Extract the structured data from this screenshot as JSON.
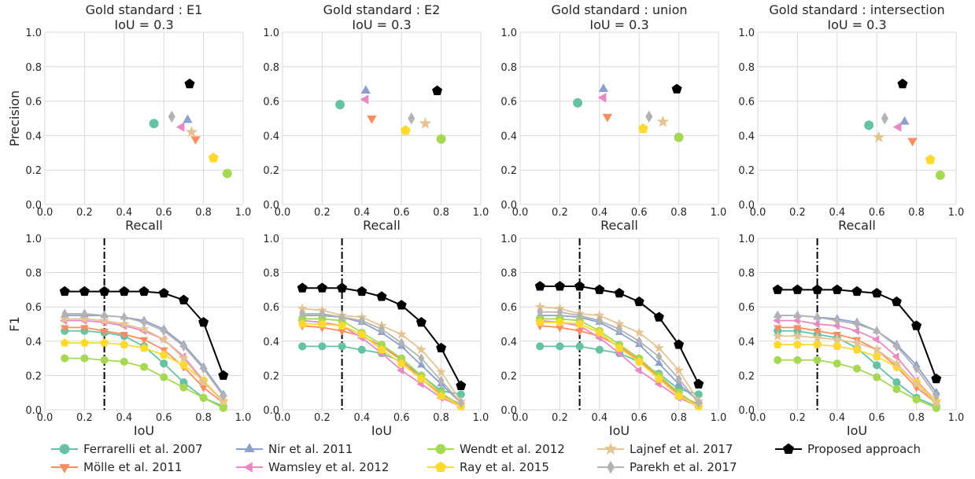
{
  "colors": {
    "Ferrarelli": "#66c2a5",
    "Molle": "#fc8d62",
    "Nir": "#8da0cb",
    "Wamsley": "#e78ac3",
    "Wendt": "#a6d854",
    "Ray": "#ffd92f",
    "Lajnef": "#e5c494",
    "Parekh": "#b3b3b3",
    "Proposed": "#000000"
  },
  "legend": [
    {
      "key": "Ferrarelli",
      "label": "Ferrarelli et al. 2007",
      "marker": "circle"
    },
    {
      "key": "Molle",
      "label": "Mölle et al. 2011",
      "marker": "triangle-down"
    },
    {
      "key": "Nir",
      "label": "Nir et al. 2011",
      "marker": "triangle-up"
    },
    {
      "key": "Wamsley",
      "label": "Wamsley et al. 2012",
      "marker": "triangle-left"
    },
    {
      "key": "Wendt",
      "label": "Wendt et al. 2012",
      "marker": "circle"
    },
    {
      "key": "Ray",
      "label": "Ray et al. 2015",
      "marker": "pentagon"
    },
    {
      "key": "Lajnef",
      "label": "Lajnef et al. 2017",
      "marker": "star"
    },
    {
      "key": "Parekh",
      "label": "Parekh et al. 2017",
      "marker": "diamond"
    },
    {
      "key": "Proposed",
      "label": "Proposed approach",
      "marker": "pentagon"
    }
  ],
  "chart_data": [
    {
      "type": "scatter",
      "title": "Gold standard : E1",
      "subtitle": "IoU = 0.3",
      "xlabel": "Recall",
      "ylabel": "Precision",
      "xlim": [
        0,
        1
      ],
      "ylim": [
        0,
        1
      ],
      "xticks": [
        "0.0",
        "0.2",
        "0.4",
        "0.6",
        "0.8",
        "1.0"
      ],
      "yticks": [
        "0.0",
        "0.2",
        "0.4",
        "0.6",
        "0.8",
        "1.0"
      ],
      "grid": true,
      "points": [
        {
          "key": "Ferrarelli",
          "x": 0.55,
          "y": 0.47
        },
        {
          "key": "Molle",
          "x": 0.76,
          "y": 0.38
        },
        {
          "key": "Nir",
          "x": 0.72,
          "y": 0.49
        },
        {
          "key": "Wamsley",
          "x": 0.69,
          "y": 0.45
        },
        {
          "key": "Wendt",
          "x": 0.92,
          "y": 0.18
        },
        {
          "key": "Ray",
          "x": 0.85,
          "y": 0.27
        },
        {
          "key": "Lajnef",
          "x": 0.74,
          "y": 0.42
        },
        {
          "key": "Parekh",
          "x": 0.64,
          "y": 0.51
        },
        {
          "key": "Proposed",
          "x": 0.73,
          "y": 0.7
        }
      ]
    },
    {
      "type": "scatter",
      "title": "Gold standard : E2",
      "subtitle": "IoU = 0.3",
      "xlabel": "Recall",
      "ylabel": "",
      "xlim": [
        0,
        1
      ],
      "ylim": [
        0,
        1
      ],
      "xticks": [
        "0.0",
        "0.2",
        "0.4",
        "0.6",
        "0.8",
        "1.0"
      ],
      "yticks": [
        "0.0",
        "0.2",
        "0.4",
        "0.6",
        "0.8",
        "1.0"
      ],
      "grid": true,
      "points": [
        {
          "key": "Ferrarelli",
          "x": 0.29,
          "y": 0.58
        },
        {
          "key": "Molle",
          "x": 0.45,
          "y": 0.5
        },
        {
          "key": "Nir",
          "x": 0.42,
          "y": 0.66
        },
        {
          "key": "Wamsley",
          "x": 0.42,
          "y": 0.61
        },
        {
          "key": "Wendt",
          "x": 0.8,
          "y": 0.38
        },
        {
          "key": "Ray",
          "x": 0.62,
          "y": 0.43
        },
        {
          "key": "Lajnef",
          "x": 0.72,
          "y": 0.47
        },
        {
          "key": "Parekh",
          "x": 0.65,
          "y": 0.5
        },
        {
          "key": "Proposed",
          "x": 0.78,
          "y": 0.66
        }
      ]
    },
    {
      "type": "scatter",
      "title": "Gold standard : union",
      "subtitle": "IoU = 0.3",
      "xlabel": "Recall",
      "ylabel": "",
      "xlim": [
        0,
        1
      ],
      "ylim": [
        0,
        1
      ],
      "xticks": [
        "0.0",
        "0.2",
        "0.4",
        "0.6",
        "0.8",
        "1.0"
      ],
      "yticks": [
        "0.0",
        "0.2",
        "0.4",
        "0.6",
        "0.8",
        "1.0"
      ],
      "grid": true,
      "points": [
        {
          "key": "Ferrarelli",
          "x": 0.29,
          "y": 0.59
        },
        {
          "key": "Molle",
          "x": 0.44,
          "y": 0.51
        },
        {
          "key": "Nir",
          "x": 0.42,
          "y": 0.67
        },
        {
          "key": "Wamsley",
          "x": 0.42,
          "y": 0.62
        },
        {
          "key": "Wendt",
          "x": 0.8,
          "y": 0.39
        },
        {
          "key": "Ray",
          "x": 0.62,
          "y": 0.44
        },
        {
          "key": "Lajnef",
          "x": 0.72,
          "y": 0.48
        },
        {
          "key": "Parekh",
          "x": 0.65,
          "y": 0.51
        },
        {
          "key": "Proposed",
          "x": 0.79,
          "y": 0.67
        }
      ]
    },
    {
      "type": "scatter",
      "title": "Gold standard : intersection",
      "subtitle": "IoU = 0.3",
      "xlabel": "Recall",
      "ylabel": "",
      "xlim": [
        0,
        1
      ],
      "ylim": [
        0,
        1
      ],
      "xticks": [
        "0.0",
        "0.2",
        "0.4",
        "0.6",
        "0.8",
        "1.0"
      ],
      "yticks": [
        "0.0",
        "0.2",
        "0.4",
        "0.6",
        "0.8",
        "1.0"
      ],
      "grid": true,
      "points": [
        {
          "key": "Ferrarelli",
          "x": 0.56,
          "y": 0.46
        },
        {
          "key": "Molle",
          "x": 0.78,
          "y": 0.37
        },
        {
          "key": "Nir",
          "x": 0.74,
          "y": 0.48
        },
        {
          "key": "Wamsley",
          "x": 0.71,
          "y": 0.45
        },
        {
          "key": "Wendt",
          "x": 0.92,
          "y": 0.17
        },
        {
          "key": "Ray",
          "x": 0.87,
          "y": 0.26
        },
        {
          "key": "Lajnef",
          "x": 0.61,
          "y": 0.39
        },
        {
          "key": "Parekh",
          "x": 0.64,
          "y": 0.5
        },
        {
          "key": "Proposed",
          "x": 0.73,
          "y": 0.7
        }
      ]
    },
    {
      "type": "line",
      "title": "",
      "xlabel": "IoU",
      "ylabel": "F1",
      "xlim": [
        0,
        1
      ],
      "ylim": [
        0,
        1
      ],
      "xticks": [
        "0.0",
        "0.2",
        "0.4",
        "0.6",
        "0.8",
        "1.0"
      ],
      "yticks": [
        "0.0",
        "0.2",
        "0.4",
        "0.6",
        "0.8",
        "1.0"
      ],
      "grid": true,
      "vline": 0.3,
      "x": [
        0.1,
        0.2,
        0.3,
        0.4,
        0.5,
        0.6,
        0.7,
        0.8,
        0.9
      ],
      "series": [
        {
          "key": "Ferrarelli",
          "values": [
            0.46,
            0.46,
            0.45,
            0.43,
            0.37,
            0.27,
            0.16,
            0.07,
            0.02
          ]
        },
        {
          "key": "Molle",
          "values": [
            0.48,
            0.48,
            0.46,
            0.44,
            0.41,
            0.35,
            0.25,
            0.13,
            0.04
          ]
        },
        {
          "key": "Nir",
          "values": [
            0.55,
            0.55,
            0.55,
            0.54,
            0.52,
            0.47,
            0.38,
            0.25,
            0.09
          ]
        },
        {
          "key": "Wamsley",
          "values": [
            0.52,
            0.52,
            0.51,
            0.49,
            0.46,
            0.41,
            0.31,
            0.17,
            0.05
          ]
        },
        {
          "key": "Wendt",
          "values": [
            0.3,
            0.3,
            0.29,
            0.28,
            0.25,
            0.19,
            0.13,
            0.07,
            0.01
          ]
        },
        {
          "key": "Ray",
          "values": [
            0.39,
            0.39,
            0.39,
            0.38,
            0.36,
            0.32,
            0.26,
            0.17,
            0.05
          ]
        },
        {
          "key": "Lajnef",
          "values": [
            0.53,
            0.53,
            0.52,
            0.5,
            0.47,
            0.41,
            0.3,
            0.16,
            0.05
          ]
        },
        {
          "key": "Parekh",
          "values": [
            0.56,
            0.56,
            0.55,
            0.54,
            0.51,
            0.46,
            0.37,
            0.24,
            0.08
          ]
        },
        {
          "key": "Proposed",
          "values": [
            0.69,
            0.69,
            0.69,
            0.69,
            0.69,
            0.68,
            0.64,
            0.51,
            0.2
          ]
        }
      ]
    },
    {
      "type": "line",
      "title": "",
      "xlabel": "IoU",
      "ylabel": "",
      "xlim": [
        0,
        1
      ],
      "ylim": [
        0,
        1
      ],
      "xticks": [
        "0.0",
        "0.2",
        "0.4",
        "0.6",
        "0.8",
        "1.0"
      ],
      "yticks": [
        "0.0",
        "0.2",
        "0.4",
        "0.6",
        "0.8",
        "1.0"
      ],
      "grid": true,
      "vline": 0.3,
      "x": [
        0.1,
        0.2,
        0.3,
        0.4,
        0.5,
        0.6,
        0.7,
        0.8,
        0.9
      ],
      "series": [
        {
          "key": "Ferrarelli",
          "values": [
            0.37,
            0.37,
            0.37,
            0.35,
            0.33,
            0.28,
            0.2,
            0.11,
            0.09
          ]
        },
        {
          "key": "Molle",
          "values": [
            0.49,
            0.48,
            0.46,
            0.43,
            0.37,
            0.29,
            0.18,
            0.09,
            0.03
          ]
        },
        {
          "key": "Nir",
          "values": [
            0.55,
            0.55,
            0.54,
            0.51,
            0.45,
            0.37,
            0.26,
            0.15,
            0.04
          ]
        },
        {
          "key": "Wamsley",
          "values": [
            0.52,
            0.51,
            0.49,
            0.42,
            0.33,
            0.23,
            0.15,
            0.07,
            0.02
          ]
        },
        {
          "key": "Wendt",
          "values": [
            0.53,
            0.53,
            0.52,
            0.45,
            0.38,
            0.3,
            0.2,
            0.1,
            0.02
          ]
        },
        {
          "key": "Ray",
          "values": [
            0.5,
            0.5,
            0.49,
            0.44,
            0.35,
            0.27,
            0.18,
            0.08,
            0.02
          ]
        },
        {
          "key": "Lajnef",
          "values": [
            0.59,
            0.58,
            0.55,
            0.54,
            0.49,
            0.44,
            0.35,
            0.22,
            0.05
          ]
        },
        {
          "key": "Parekh",
          "values": [
            0.56,
            0.56,
            0.54,
            0.52,
            0.47,
            0.39,
            0.3,
            0.17,
            0.04
          ]
        },
        {
          "key": "Proposed",
          "values": [
            0.71,
            0.71,
            0.71,
            0.69,
            0.66,
            0.61,
            0.51,
            0.36,
            0.14
          ]
        }
      ]
    },
    {
      "type": "line",
      "title": "",
      "xlabel": "IoU",
      "ylabel": "",
      "xlim": [
        0,
        1
      ],
      "ylim": [
        0,
        1
      ],
      "xticks": [
        "0.0",
        "0.2",
        "0.4",
        "0.6",
        "0.8",
        "1.0"
      ],
      "yticks": [
        "0.0",
        "0.2",
        "0.4",
        "0.6",
        "0.8",
        "1.0"
      ],
      "grid": true,
      "vline": 0.3,
      "x": [
        0.1,
        0.2,
        0.3,
        0.4,
        0.5,
        0.6,
        0.7,
        0.8,
        0.9
      ],
      "series": [
        {
          "key": "Ferrarelli",
          "values": [
            0.37,
            0.37,
            0.37,
            0.35,
            0.33,
            0.28,
            0.21,
            0.12,
            0.09
          ]
        },
        {
          "key": "Molle",
          "values": [
            0.49,
            0.48,
            0.46,
            0.43,
            0.37,
            0.29,
            0.19,
            0.09,
            0.03
          ]
        },
        {
          "key": "Nir",
          "values": [
            0.55,
            0.55,
            0.54,
            0.51,
            0.45,
            0.38,
            0.27,
            0.15,
            0.05
          ]
        },
        {
          "key": "Wamsley",
          "values": [
            0.52,
            0.51,
            0.49,
            0.42,
            0.33,
            0.23,
            0.15,
            0.07,
            0.02
          ]
        },
        {
          "key": "Wendt",
          "values": [
            0.53,
            0.53,
            0.52,
            0.46,
            0.38,
            0.3,
            0.2,
            0.1,
            0.02
          ]
        },
        {
          "key": "Ray",
          "values": [
            0.51,
            0.51,
            0.5,
            0.45,
            0.36,
            0.28,
            0.18,
            0.08,
            0.02
          ]
        },
        {
          "key": "Lajnef",
          "values": [
            0.6,
            0.59,
            0.56,
            0.55,
            0.5,
            0.45,
            0.36,
            0.23,
            0.05
          ]
        },
        {
          "key": "Parekh",
          "values": [
            0.57,
            0.57,
            0.55,
            0.52,
            0.47,
            0.4,
            0.31,
            0.18,
            0.04
          ]
        },
        {
          "key": "Proposed",
          "values": [
            0.72,
            0.72,
            0.72,
            0.7,
            0.68,
            0.63,
            0.54,
            0.38,
            0.15
          ]
        }
      ]
    },
    {
      "type": "line",
      "title": "",
      "xlabel": "IoU",
      "ylabel": "",
      "xlim": [
        0,
        1
      ],
      "ylim": [
        0,
        1
      ],
      "xticks": [
        "0.0",
        "0.2",
        "0.4",
        "0.6",
        "0.8",
        "1.0"
      ],
      "yticks": [
        "0.0",
        "0.2",
        "0.4",
        "0.6",
        "0.8",
        "1.0"
      ],
      "grid": true,
      "vline": 0.3,
      "x": [
        0.1,
        0.2,
        0.3,
        0.4,
        0.5,
        0.6,
        0.7,
        0.8,
        0.9
      ],
      "series": [
        {
          "key": "Ferrarelli",
          "values": [
            0.46,
            0.46,
            0.44,
            0.42,
            0.36,
            0.26,
            0.16,
            0.07,
            0.02
          ]
        },
        {
          "key": "Molle",
          "values": [
            0.48,
            0.48,
            0.46,
            0.44,
            0.41,
            0.35,
            0.25,
            0.13,
            0.04
          ]
        },
        {
          "key": "Nir",
          "values": [
            0.55,
            0.55,
            0.54,
            0.53,
            0.51,
            0.46,
            0.38,
            0.26,
            0.1
          ]
        },
        {
          "key": "Wamsley",
          "values": [
            0.52,
            0.52,
            0.5,
            0.49,
            0.46,
            0.41,
            0.31,
            0.17,
            0.05
          ]
        },
        {
          "key": "Wendt",
          "values": [
            0.29,
            0.29,
            0.29,
            0.27,
            0.24,
            0.19,
            0.12,
            0.06,
            0.01
          ]
        },
        {
          "key": "Ray",
          "values": [
            0.38,
            0.38,
            0.38,
            0.37,
            0.35,
            0.31,
            0.25,
            0.16,
            0.05
          ]
        },
        {
          "key": "Lajnef",
          "values": [
            0.43,
            0.43,
            0.42,
            0.41,
            0.39,
            0.35,
            0.27,
            0.15,
            0.04
          ]
        },
        {
          "key": "Parekh",
          "values": [
            0.55,
            0.55,
            0.54,
            0.52,
            0.5,
            0.46,
            0.37,
            0.24,
            0.08
          ]
        },
        {
          "key": "Proposed",
          "values": [
            0.7,
            0.7,
            0.7,
            0.7,
            0.69,
            0.68,
            0.63,
            0.49,
            0.18
          ]
        }
      ]
    }
  ]
}
